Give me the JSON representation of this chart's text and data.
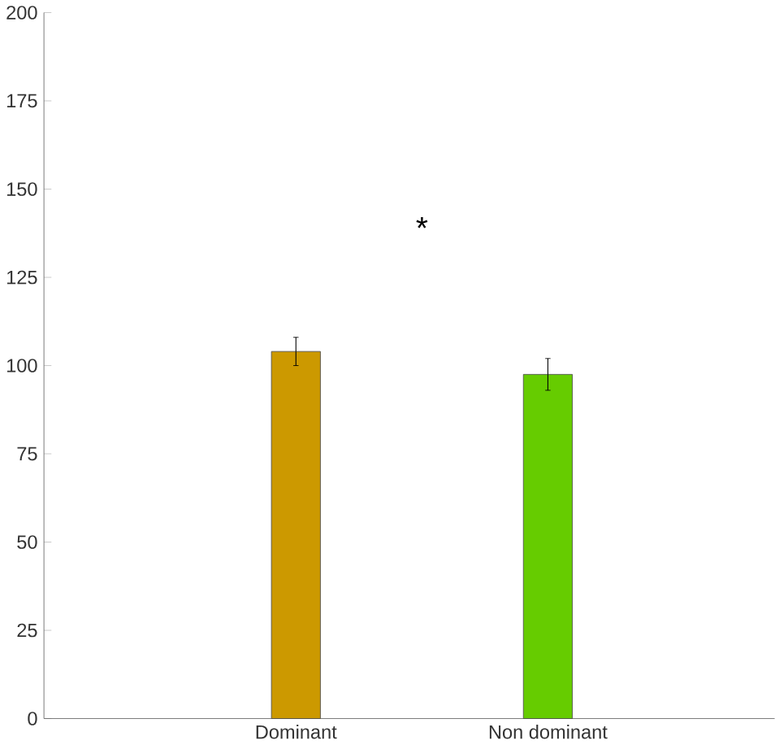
{
  "chart_data": {
    "type": "bar",
    "categories": [
      "Dominant",
      "Non dominant"
    ],
    "values": [
      104,
      97.5
    ],
    "errors": [
      4,
      4.5
    ],
    "colors": [
      "#cc9900",
      "#66cc00"
    ],
    "ylim": [
      0,
      200
    ],
    "yticks": [
      0,
      25,
      50,
      75,
      100,
      125,
      150,
      175,
      200
    ],
    "annotations": [
      "*"
    ]
  }
}
